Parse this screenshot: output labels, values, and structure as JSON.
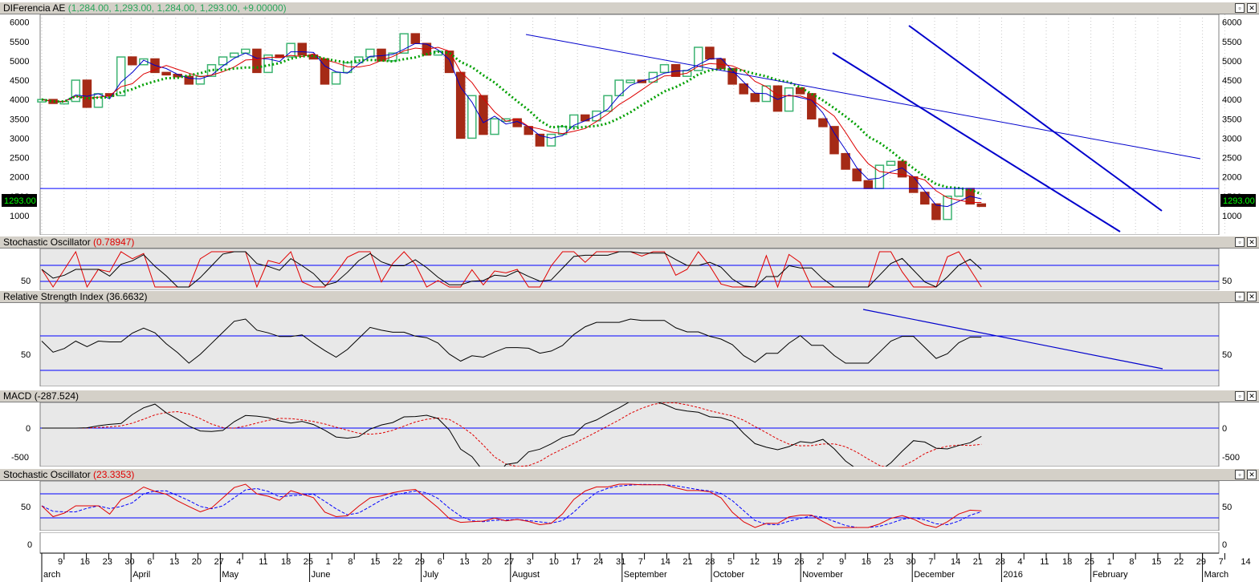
{
  "panes": {
    "price": {
      "name": "DIFerencia AE",
      "values": "(1,284.00, 1,293.00, 1,284.00, 1,293.00, +9.00000)",
      "last": "1293.00"
    },
    "stoch1": {
      "name": "Stochastic Oscillator",
      "value": "(0.78947)"
    },
    "rsi": {
      "name": "Relative Strength Index",
      "value": "(36.6632)"
    },
    "macd": {
      "name": "MACD",
      "value": "(-287.524)"
    },
    "stoch2": {
      "name": "Stochastic Oscillator",
      "value": "(23.3353)"
    }
  },
  "window_buttons": {
    "restore": "▫",
    "close": "✕"
  },
  "axis": {
    "price_ticks": [
      "6000",
      "5500",
      "5000",
      "4500",
      "4000",
      "3500",
      "3000",
      "2500",
      "2000",
      "1500",
      "1000"
    ],
    "stoch_ticks": [
      "50"
    ],
    "rsi_ticks": [
      "50"
    ],
    "macd_ticks": [
      "0",
      "-500"
    ],
    "bottom_ticks": [
      "0"
    ],
    "day_labels": [
      "9",
      "16",
      "23",
      "30",
      "6",
      "13",
      "20",
      "27",
      "4",
      "11",
      "18",
      "25",
      "1",
      "8",
      "15",
      "22",
      "29",
      "6",
      "13",
      "20",
      "27",
      "3",
      "10",
      "17",
      "24",
      "31",
      "7",
      "14",
      "21",
      "28",
      "5",
      "12",
      "19",
      "26",
      "2",
      "9",
      "16",
      "23",
      "30",
      "7",
      "14",
      "21",
      "28",
      "4",
      "11",
      "18",
      "25",
      "1",
      "8",
      "15",
      "22",
      "29",
      "7",
      "14"
    ],
    "month_labels": [
      "arch",
      "April",
      "May",
      "June",
      "July",
      "August",
      "September",
      "October",
      "November",
      "December",
      "2016",
      "February",
      "March"
    ]
  },
  "colors": {
    "up": "#3cb371",
    "down": "#a52a16",
    "ma_blue": "#0000cc",
    "ma_red": "#dd0000",
    "ma_green": "#00a000",
    "level": "#0000ff",
    "pane_bg": "#e8e8e8"
  },
  "chart_data": {
    "type": "candlestick",
    "x_range": [
      "Mar 2015",
      "Mar 2016"
    ],
    "price_ylim": [
      500,
      6200
    ],
    "last_close": 1293,
    "horizontal_level": 1700,
    "weekly_close_approx": [
      4000,
      3900,
      3950,
      4500,
      3800,
      4150,
      4100,
      5100,
      4900,
      5050,
      4700,
      4650,
      4600,
      4400,
      4600,
      4900,
      5100,
      5200,
      5300,
      4700,
      5150,
      5100,
      5450,
      5150,
      5050,
      4400,
      4700,
      4950,
      5100,
      5300,
      5000,
      5200,
      5700,
      5450,
      5150,
      5250,
      4700,
      3000,
      4100,
      3100,
      3500,
      3500,
      3300,
      3100,
      2800,
      3100,
      3300,
      3600,
      3450,
      3700,
      4100,
      4500,
      4500,
      4450,
      4700,
      4900,
      4600,
      4750,
      5350,
      5050,
      4800,
      4400,
      4150,
      3950,
      4350,
      3700,
      4300,
      4150,
      3500,
      3300,
      2600,
      2200,
      1900,
      1700,
      2300,
      2400,
      2000,
      1600,
      1300,
      900,
      1500,
      1700,
      1300,
      1293
    ],
    "stoch1_levels": [
      20,
      80
    ],
    "stoch2_levels": [
      20,
      80
    ],
    "rsi_levels": [
      30,
      70
    ],
    "macd_ylim": [
      -700,
      400
    ]
  }
}
